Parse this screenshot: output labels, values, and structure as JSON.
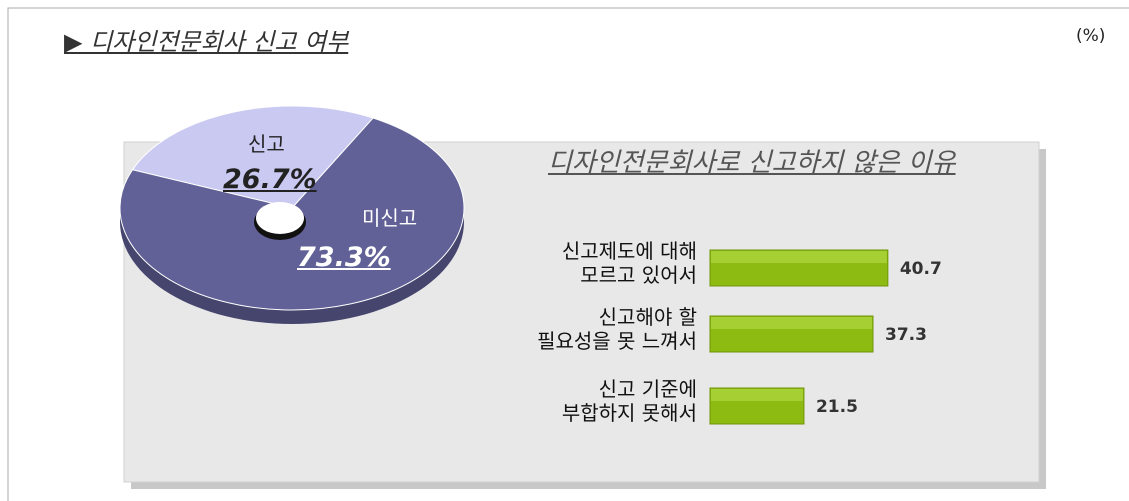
{
  "chart_data": [
    {
      "type": "pie",
      "title": "▶ 디자인전문회사  신고 여부",
      "unit": "(%)",
      "categories": [
        "신고",
        "미신고"
      ],
      "values": [
        26.7,
        73.3
      ],
      "value_labels": [
        "26.7%",
        "73.3%"
      ],
      "colors": [
        "#c9c9f2",
        "#616198"
      ]
    },
    {
      "type": "barh",
      "title": "디자인전문회사로 신고하지 않은 이유",
      "categories": [
        "신고제도에 대해\n모르고 있어서",
        "신고해야 할\n필요성을 못 느껴서",
        "신고 기준에\n부합하지 못해서"
      ],
      "values": [
        40.7,
        37.3,
        21.5
      ],
      "color": "#8dbb12"
    }
  ]
}
